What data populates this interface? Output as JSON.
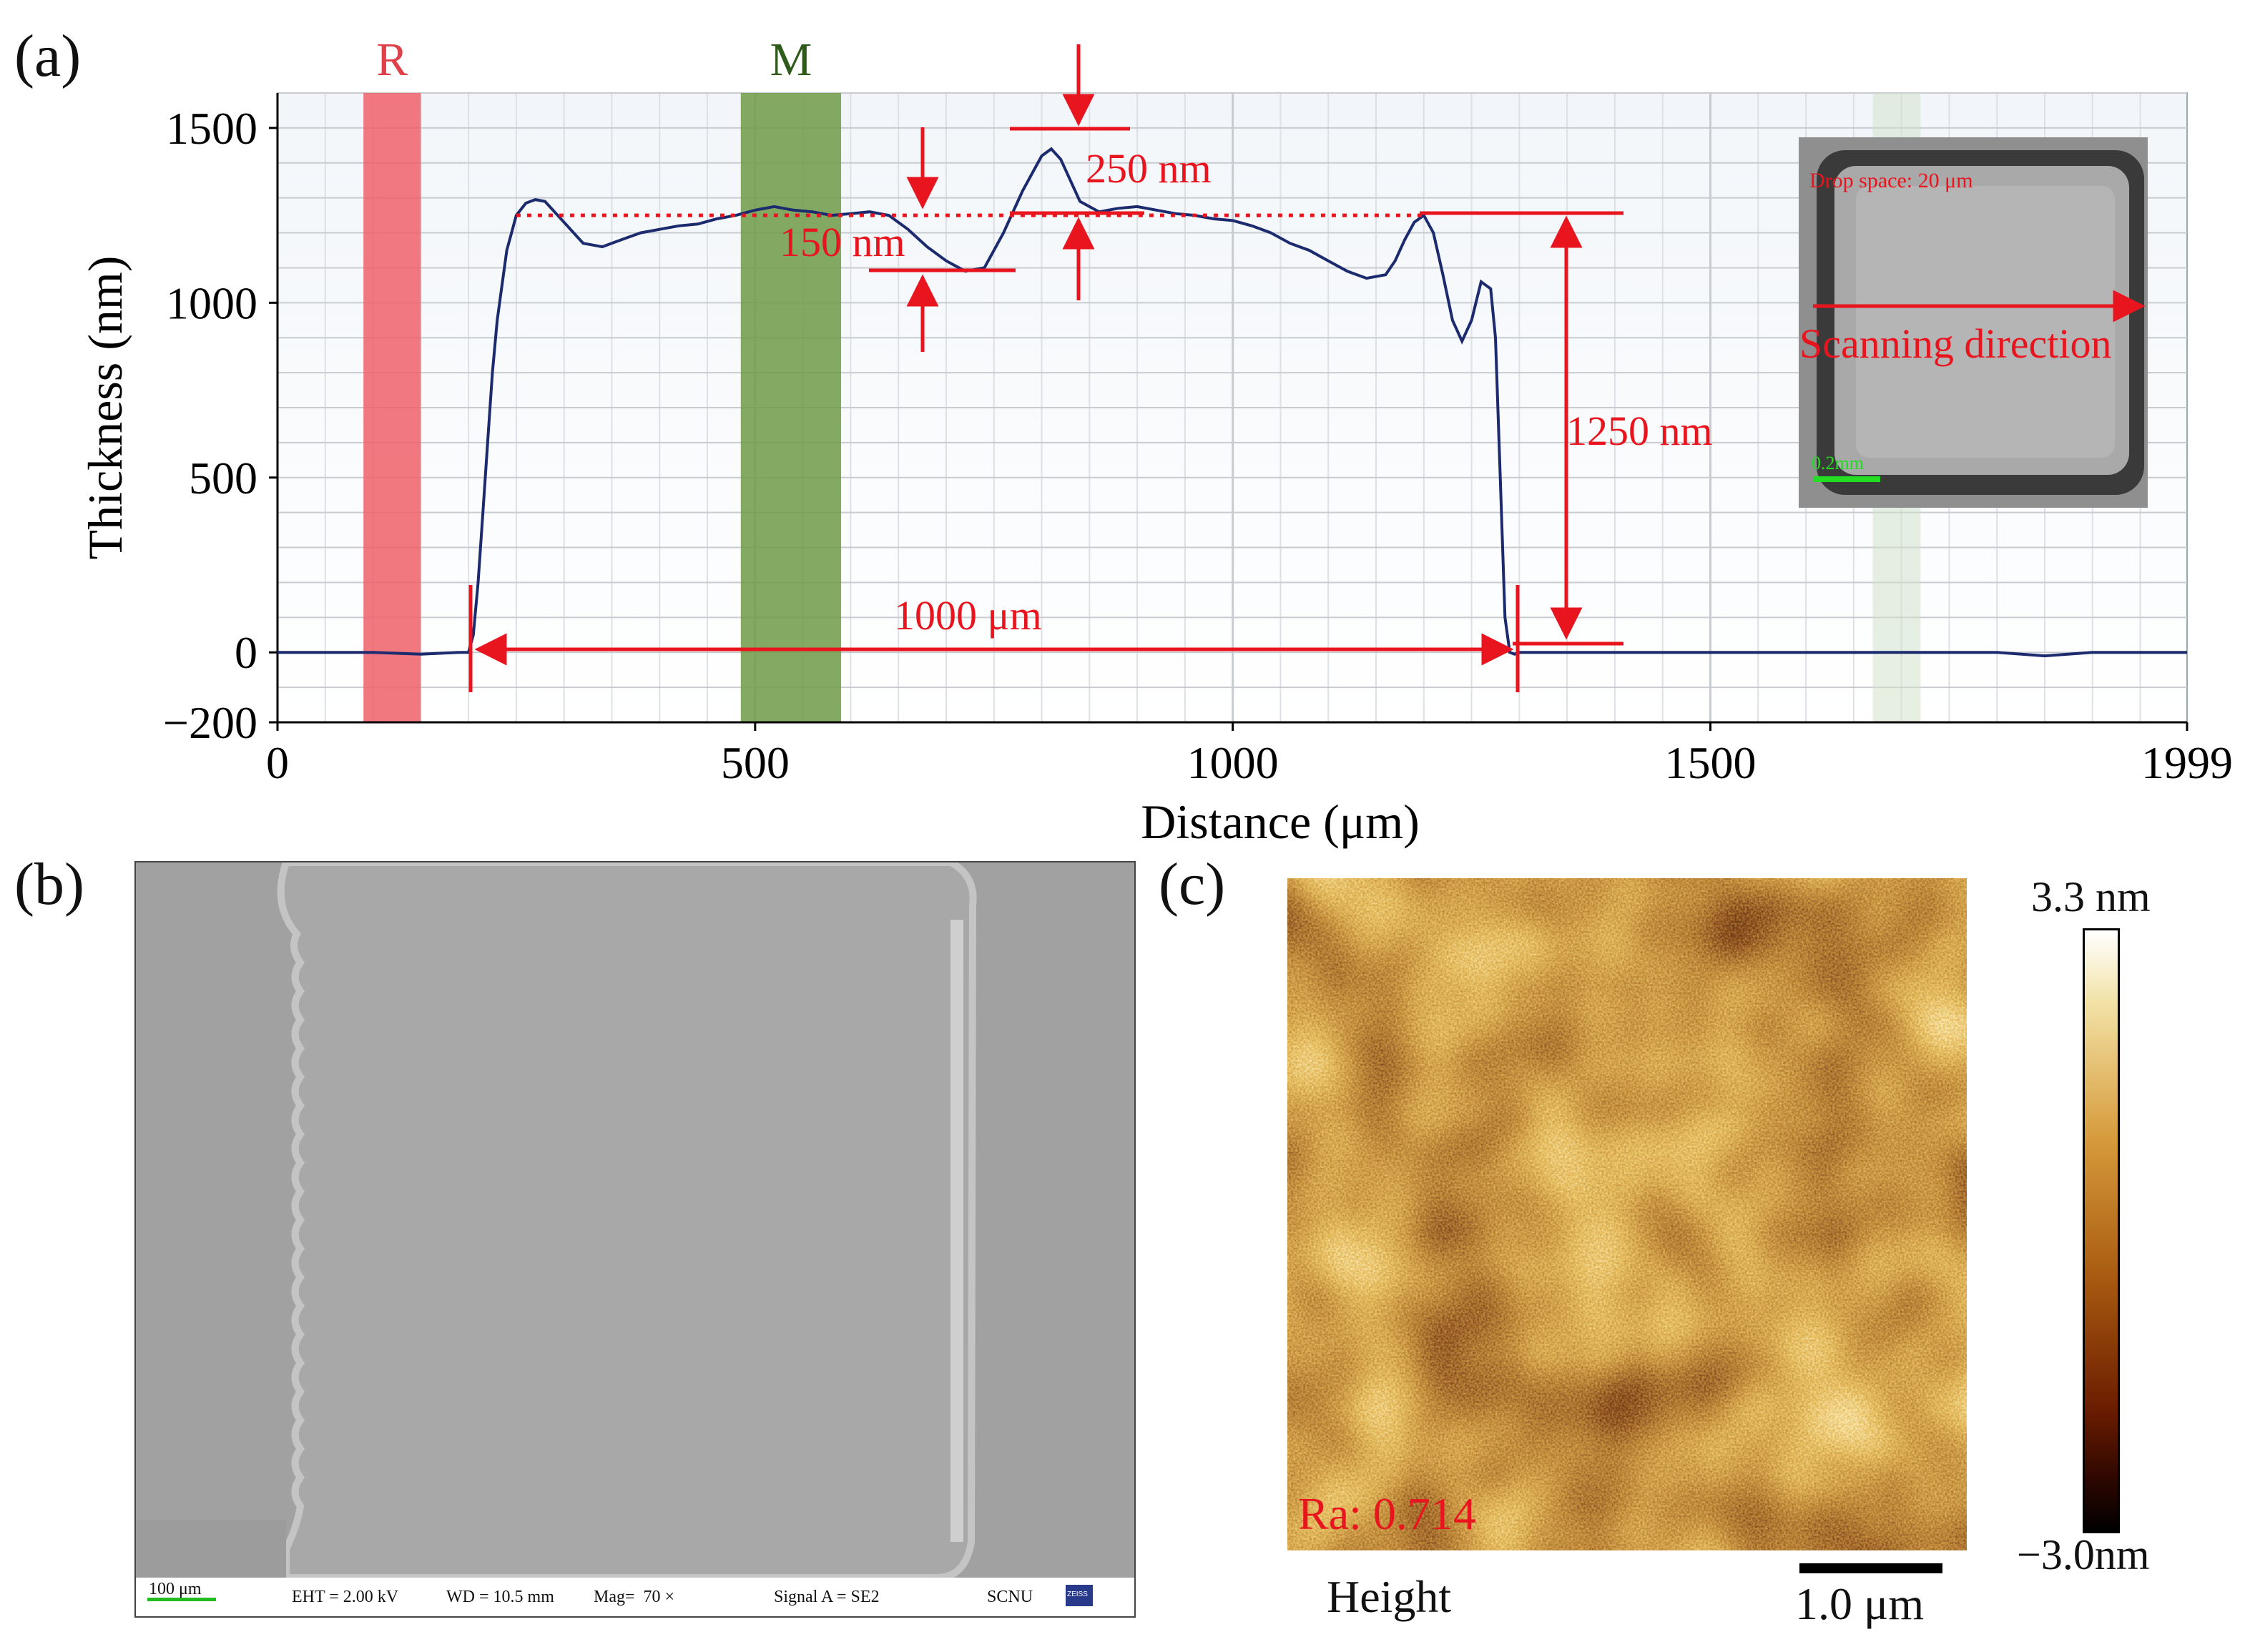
{
  "panels": {
    "a": "(a)",
    "b": "(b)",
    "c": "(c)"
  },
  "chart_data": {
    "type": "line",
    "title": "",
    "xlabel": "Distance (μm)",
    "ylabel": "Thickness (nm)",
    "xlim": [
      0,
      1999
    ],
    "ylim": [
      -200,
      1600
    ],
    "xticks": [
      0,
      500,
      1000,
      1500,
      1999
    ],
    "yticks": [
      -200,
      0,
      500,
      1000,
      1500
    ],
    "xtick_labels": [
      "0",
      "500",
      "1000",
      "1500",
      "1999"
    ],
    "ytick_labels": [
      "−200",
      "0",
      "500",
      "1000",
      "1500"
    ],
    "grid": true,
    "series": [
      {
        "name": "profile",
        "color": "#1c2a6e",
        "x": [
          0,
          100,
          150,
          190,
          200,
          205,
          210,
          215,
          220,
          225,
          230,
          235,
          240,
          250,
          260,
          270,
          280,
          290,
          300,
          320,
          340,
          360,
          380,
          400,
          420,
          440,
          460,
          480,
          500,
          520,
          540,
          560,
          580,
          600,
          620,
          640,
          660,
          680,
          700,
          720,
          740,
          760,
          780,
          800,
          810,
          820,
          830,
          840,
          860,
          880,
          900,
          920,
          940,
          960,
          980,
          1000,
          1020,
          1040,
          1060,
          1080,
          1100,
          1120,
          1140,
          1160,
          1170,
          1180,
          1190,
          1200,
          1210,
          1220,
          1230,
          1240,
          1250,
          1260,
          1270,
          1275,
          1280,
          1285,
          1290,
          1295,
          1300,
          1400,
          1500,
          1600,
          1700,
          1800,
          1850,
          1900,
          1999
        ],
        "y": [
          0,
          0,
          -5,
          0,
          0,
          50,
          200,
          400,
          600,
          800,
          950,
          1050,
          1150,
          1250,
          1285,
          1295,
          1290,
          1260,
          1230,
          1170,
          1160,
          1180,
          1200,
          1210,
          1220,
          1225,
          1240,
          1250,
          1265,
          1275,
          1265,
          1260,
          1250,
          1255,
          1260,
          1250,
          1210,
          1160,
          1120,
          1090,
          1100,
          1200,
          1320,
          1420,
          1440,
          1410,
          1350,
          1290,
          1260,
          1270,
          1275,
          1265,
          1255,
          1250,
          1240,
          1235,
          1220,
          1200,
          1170,
          1150,
          1120,
          1090,
          1070,
          1080,
          1120,
          1180,
          1230,
          1250,
          1200,
          1080,
          950,
          890,
          950,
          1060,
          1040,
          900,
          500,
          100,
          0,
          -5,
          0,
          0,
          0,
          0,
          0,
          0,
          -10,
          0,
          0
        ]
      }
    ],
    "bands": [
      {
        "label": "R",
        "x0": 90,
        "x1": 150,
        "color": "#f0606a",
        "label_color": "#e0404a"
      },
      {
        "label": "M",
        "x0": 485,
        "x1": 590,
        "color": "#6e9a46",
        "label_color": "#2e5a1a"
      }
    ],
    "reference_line_y": 1250,
    "annotations": {
      "step_250": "250 nm",
      "step_150": "150 nm",
      "height": "1250 nm",
      "width": "1000 μm"
    },
    "inset": {
      "caption": "Drop space: 20 μm",
      "direction": "Scanning direction",
      "scale": "0.2mm"
    }
  },
  "sem": {
    "scale": "100 μm",
    "eht": "EHT = 2.00 kV",
    "wd": "WD = 10.5 mm",
    "mag": "Mag=  70 ×",
    "signal": "Signal A = SE2",
    "lab": "SCNU",
    "logo": "ZEISS"
  },
  "afm": {
    "ra": "Ra: 0.714",
    "label": "Height",
    "scale": "1.0 μm",
    "max": "3.3 nm",
    "min": "−3.0nm"
  },
  "colors": {
    "red": "#e8141e",
    "afm_dark": "#2a0a00",
    "afm_mid": "#8a4a10",
    "afm_light": "#f0d080"
  }
}
